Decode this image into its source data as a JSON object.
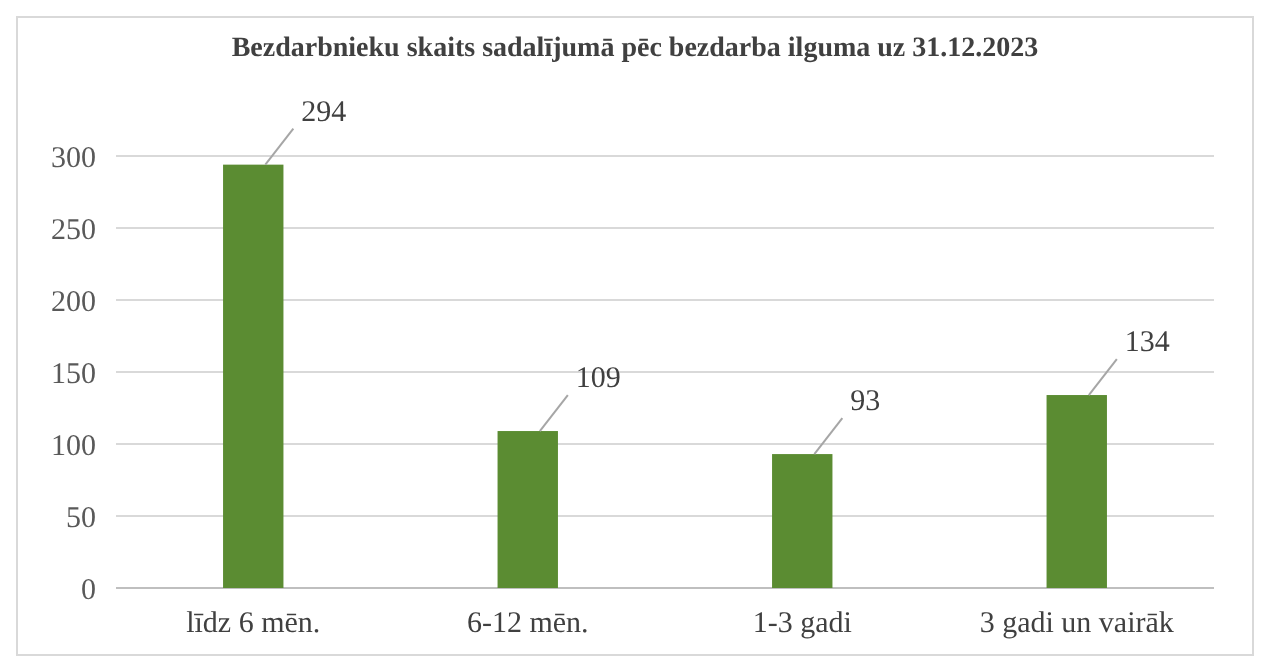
{
  "chart_data": {
    "type": "bar",
    "title": "Bezdarbnieku skaits sadalījumā pēc bezdarba ilguma uz 31.12.2023",
    "categories": [
      "līdz 6 mēn.",
      "6-12 mēn.",
      "1-3 gadi",
      "3 gadi un vairāk"
    ],
    "values": [
      294,
      109,
      93,
      134
    ],
    "color": "#5b8c32",
    "ylim": [
      0,
      300
    ],
    "yticks": [
      0,
      50,
      100,
      150,
      200,
      250,
      300
    ],
    "grid": "y",
    "data_labels": true
  }
}
